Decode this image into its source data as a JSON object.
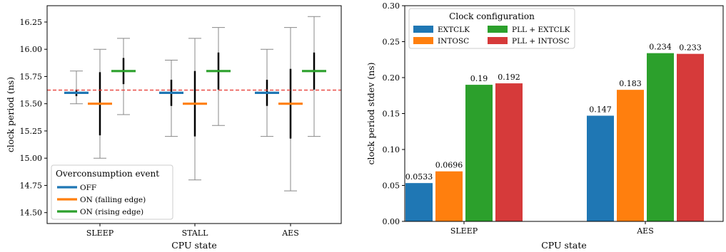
{
  "chart_data": [
    {
      "type": "errorbar",
      "xlabel": "CPU state",
      "ylabel": "clock period (ns)",
      "ylim": [
        14.4,
        16.4
      ],
      "yticks": [
        "14.50",
        "14.75",
        "15.00",
        "15.25",
        "15.50",
        "15.75",
        "16.00",
        "16.25"
      ],
      "ytick_values": [
        14.5,
        14.75,
        15.0,
        15.25,
        15.5,
        15.75,
        16.0,
        16.25
      ],
      "categories": [
        "SLEEP",
        "STALL",
        "AES"
      ],
      "reference_line": {
        "y": 15.625,
        "color": "#e8403a",
        "style": "dashed"
      },
      "legend": {
        "title": "Overconsumption event",
        "placement": "lower-left"
      },
      "series": [
        {
          "name": "OFF",
          "color": "#1f77b4",
          "points": [
            {
              "mean": 15.6,
              "std_low": 15.57,
              "std_high": 15.63,
              "min": 15.5,
              "max": 15.8
            },
            {
              "mean": 15.6,
              "std_low": 15.48,
              "std_high": 15.72,
              "min": 15.2,
              "max": 15.9
            },
            {
              "mean": 15.6,
              "std_low": 15.48,
              "std_high": 15.72,
              "min": 15.2,
              "max": 16.0
            }
          ]
        },
        {
          "name": "ON (falling edge)",
          "color": "#ff7f0e",
          "points": [
            {
              "mean": 15.5,
              "std_low": 15.21,
              "std_high": 15.79,
              "min": 15.0,
              "max": 16.0
            },
            {
              "mean": 15.5,
              "std_low": 15.2,
              "std_high": 15.8,
              "min": 14.8,
              "max": 16.1
            },
            {
              "mean": 15.5,
              "std_low": 15.18,
              "std_high": 15.82,
              "min": 14.7,
              "max": 16.2
            }
          ]
        },
        {
          "name": "ON (rising edge)",
          "color": "#2ca02c",
          "points": [
            {
              "mean": 15.8,
              "std_low": 15.68,
              "std_high": 15.92,
              "min": 15.4,
              "max": 16.1
            },
            {
              "mean": 15.8,
              "std_low": 15.63,
              "std_high": 15.97,
              "min": 15.3,
              "max": 16.2
            },
            {
              "mean": 15.8,
              "std_low": 15.63,
              "std_high": 15.97,
              "min": 15.2,
              "max": 16.3
            }
          ]
        }
      ]
    },
    {
      "type": "bar",
      "xlabel": "CPU state",
      "ylabel": "clock period stdev (ns)",
      "ylim": [
        0,
        0.3
      ],
      "yticks": [
        "0.00",
        "0.05",
        "0.10",
        "0.15",
        "0.20",
        "0.25",
        "0.30"
      ],
      "ytick_values": [
        0,
        0.05,
        0.1,
        0.15,
        0.2,
        0.25,
        0.3
      ],
      "categories": [
        "SLEEP",
        "AES"
      ],
      "legend": {
        "title": "Clock configuration",
        "placement": "top-left",
        "columns": 2
      },
      "series": [
        {
          "name": "EXTCLK",
          "color": "#1f77b4",
          "values": [
            0.0533,
            0.147
          ],
          "labels": [
            "0.0533",
            "0.147"
          ]
        },
        {
          "name": "INTOSC",
          "color": "#ff7f0e",
          "values": [
            0.0696,
            0.183
          ],
          "labels": [
            "0.0696",
            "0.183"
          ]
        },
        {
          "name": "PLL + EXTCLK",
          "color": "#2ca02c",
          "values": [
            0.19,
            0.234
          ],
          "labels": [
            "0.19",
            "0.234"
          ]
        },
        {
          "name": "PLL + INTOSC",
          "color": "#d63a3a",
          "values": [
            0.192,
            0.233
          ],
          "labels": [
            "0.192",
            "0.233"
          ]
        }
      ]
    }
  ]
}
